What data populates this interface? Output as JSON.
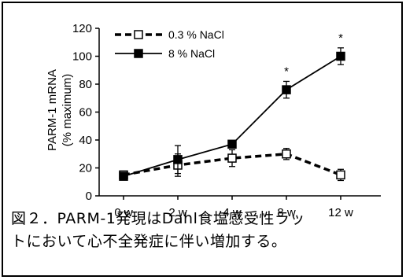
{
  "chart_data": {
    "type": "line",
    "categories": [
      "0 w",
      "2 w",
      "4 w",
      "8 w",
      "12 w"
    ],
    "ylabel_line1": "PARM-1 mRNA",
    "ylabel_line2": "(% maximum)",
    "ylim": [
      0,
      120
    ],
    "yticks": [
      "0",
      "20",
      "40",
      "60",
      "80",
      "100",
      "120"
    ],
    "ytick_values": [
      0,
      20,
      40,
      60,
      80,
      100,
      120
    ],
    "legend_placement": "top-left",
    "series": [
      {
        "name": "0.3 % NaCl",
        "values": [
          15,
          22,
          27,
          30,
          15
        ],
        "errors": [
          2,
          8,
          6,
          4,
          4
        ],
        "style": "dashed",
        "marker": "open-square",
        "color": "#000000"
      },
      {
        "name": "8 % NaCl",
        "values": [
          14,
          26,
          37,
          76,
          100
        ],
        "errors": [
          2,
          10,
          2,
          6,
          6
        ],
        "style": "solid",
        "marker": "filled-square",
        "color": "#000000"
      }
    ],
    "annotations": [
      {
        "category": "8 w",
        "text": "*"
      },
      {
        "category": "12 w",
        "text": "*"
      }
    ]
  },
  "caption": {
    "line1": "図２．PARM-1発現はDahl食塩感受性ラッ",
    "line2": "トにおいて心不全発症に伴い増加する。"
  }
}
